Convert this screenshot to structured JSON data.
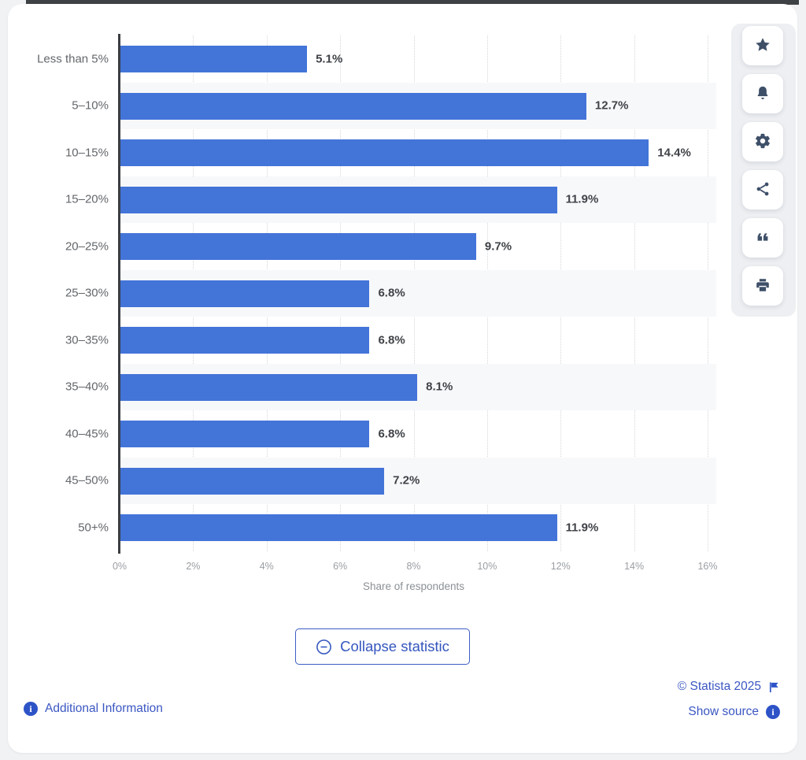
{
  "chart_data": {
    "type": "bar",
    "orientation": "horizontal",
    "title": "",
    "categories": [
      "Less than 5%",
      "5–10%",
      "10–15%",
      "15–20%",
      "20–25%",
      "25–30%",
      "30–35%",
      "35–40%",
      "40–45%",
      "45–50%",
      "50+%"
    ],
    "values": [
      5.1,
      12.7,
      14.4,
      11.9,
      9.7,
      6.8,
      6.8,
      8.1,
      6.8,
      7.2,
      11.9
    ],
    "value_labels": [
      "5.1%",
      "12.7%",
      "14.4%",
      "11.9%",
      "9.7%",
      "6.8%",
      "6.8%",
      "8.1%",
      "6.8%",
      "7.2%",
      "11.9%"
    ],
    "xlabel": "Share of respondents",
    "ylabel": "",
    "xlim": [
      0,
      16
    ],
    "x_ticks": [
      "0%",
      "2%",
      "4%",
      "6%",
      "8%",
      "10%",
      "12%",
      "14%",
      "16%"
    ],
    "grid": "vertical-dotted",
    "legend": "none",
    "bar_color": "#4374d8"
  },
  "sidebar": {
    "buttons": [
      {
        "label": "favorite",
        "icon": "star-icon"
      },
      {
        "label": "notifications",
        "icon": "bell-icon"
      },
      {
        "label": "settings",
        "icon": "gear-icon"
      },
      {
        "label": "share",
        "icon": "share-icon"
      },
      {
        "label": "cite",
        "icon": "quote-icon"
      },
      {
        "label": "print",
        "icon": "printer-icon"
      }
    ]
  },
  "actions": {
    "collapse_label": "Collapse statistic"
  },
  "footer": {
    "additional_info_label": "Additional Information",
    "copyright": "© Statista 2025",
    "show_source_label": "Show source"
  },
  "colors": {
    "bar": "#4374d8",
    "link": "#3b57c2",
    "icon": "#3e4f68",
    "axis": "#3a3e42",
    "gridline": "#d4d7da",
    "row_alt": "#f7f8fa"
  }
}
